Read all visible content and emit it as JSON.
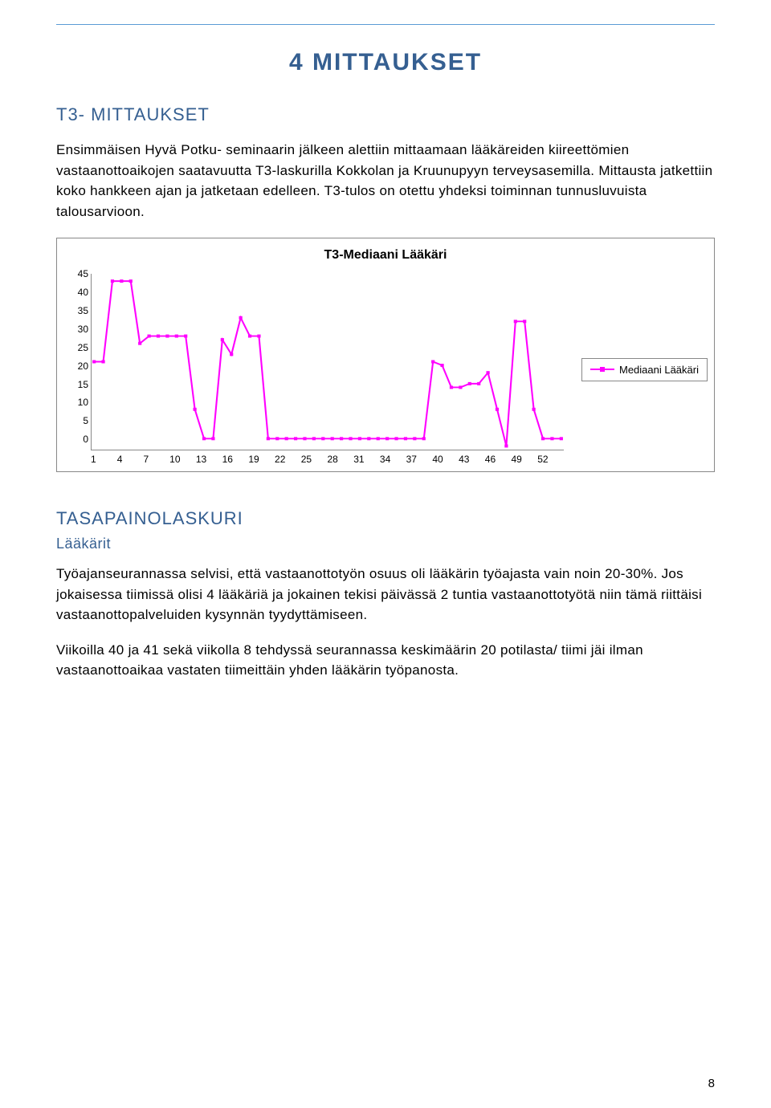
{
  "section_title": "4 MITTAUKSET",
  "sub_title": "T3- MITTAUKSET",
  "intro_para": "Ensimmäisen Hyvä Potku- seminaarin jälkeen alettiin mittaamaan lääkäreiden kiireettömien vastaanottoaikojen saatavuutta T3-laskurilla Kokkolan ja Kruunupyyn terveysasemilla. Mittausta jatkettiin koko hankkeen ajan ja jatketaan edelleen. T3-tulos on otettu yhdeksi toiminnan tunnusluvuista talousarvioon.",
  "chart": {
    "type": "line",
    "title": "T3-Mediaani Lääkäri",
    "series_name": "Mediaani Lääkäri",
    "y": {
      "min": -3,
      "max": 45,
      "ticks": [
        0,
        5,
        10,
        15,
        20,
        25,
        30,
        35,
        40,
        45
      ]
    },
    "x_labels": [
      1,
      4,
      7,
      10,
      13,
      16,
      19,
      22,
      25,
      28,
      31,
      34,
      37,
      40,
      43,
      46,
      49,
      52
    ],
    "n_points": 52,
    "line_color": "#ff00ff",
    "marker_color": "#ff00ff",
    "marker_size": 4,
    "axis_color": "#888888",
    "background": "#ffffff",
    "values": [
      21,
      21,
      43,
      43,
      43,
      26,
      28,
      28,
      28,
      28,
      28,
      8,
      0,
      0,
      27,
      23,
      33,
      28,
      28,
      0,
      0,
      0,
      0,
      0,
      0,
      0,
      0,
      0,
      0,
      0,
      0,
      0,
      0,
      0,
      0,
      0,
      0,
      21,
      20,
      14,
      14,
      15,
      15,
      18,
      8,
      -2,
      32,
      32,
      8,
      0,
      0,
      0
    ]
  },
  "second_title": "TASAPAINOLASKURI",
  "second_sub": "Lääkärit",
  "para2": "Työajanseurannassa selvisi, että vastaanottotyön osuus oli lääkärin työajasta vain noin 20-30%. Jos jokaisessa tiimissä olisi 4 lääkäriä ja jokainen tekisi päivässä 2 tuntia vastaanottotyötä niin tämä riittäisi vastaanottopalveluiden kysynnän tyydyttämiseen.",
  "para3": "Viikoilla 40 ja 41 sekä viikolla 8 tehdyssä seurannassa keskimäärin 20 potilasta/ tiimi jäi ilman vastaanottoaikaa vastaten tiimeittäin yhden lääkärin työpanosta.",
  "page_number": "8"
}
